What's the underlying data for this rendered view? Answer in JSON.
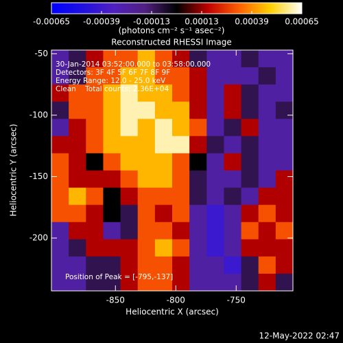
{
  "chart_data": {
    "type": "heatmap",
    "title": "Reconstructed RHESSI Image",
    "colorbar_label": "(photons cm⁻² s⁻¹ asec⁻²)",
    "zlim": [
      -0.00065,
      0.00065
    ],
    "zticks": [
      -0.00065,
      -0.00039,
      -0.00013,
      0.00013,
      0.00039,
      0.00065
    ],
    "colormap": [
      "#0000ff",
      "#2010e0",
      "#5020c0",
      "#502080",
      "#000000",
      "#c00000",
      "#ff6000",
      "#ffd000",
      "#ffffff"
    ],
    "x_label": "Heliocentric X (arcsec)",
    "y_label": "Heliocentric Y (arcsec)",
    "xlim": [
      -903,
      -703
    ],
    "ylim": [
      -243,
      -47
    ],
    "xticks": [
      -850,
      -800,
      -750
    ],
    "yticks": [
      -50,
      -100,
      -150,
      -200
    ],
    "z": [
      [
        -0.00025,
        -0.0001,
        0.00015,
        0.0003,
        0.0003,
        0.00045,
        0.0003,
        0.00015,
        -0.0001,
        -0.00025,
        -0.00025,
        -0.0001,
        -0.00025,
        -0.00025
      ],
      [
        -0.00025,
        -0.0001,
        0.0003,
        0.0003,
        0.00045,
        0.00045,
        0.0003,
        0.0003,
        0.00015,
        -0.00025,
        -0.00025,
        -0.00025,
        -0.0001,
        -0.00025
      ],
      [
        0.00015,
        0.0003,
        0.0003,
        0.00045,
        0.0006,
        0.00045,
        0.00045,
        0.0003,
        0.00015,
        -0.00025,
        0.00015,
        -0.0001,
        -0.00025,
        -0.00025
      ],
      [
        -0.0001,
        0.0003,
        0.0003,
        0.00045,
        0.0006,
        0.0006,
        0.00045,
        0.00045,
        0.00015,
        -0.00025,
        0.00015,
        -0.0001,
        -0.00025,
        -0.0001
      ],
      [
        -0.00025,
        0.00015,
        0.0003,
        0.00045,
        0.0006,
        0.00045,
        0.0006,
        0.00045,
        0.0003,
        -0.00025,
        -0.0001,
        0.00015,
        -0.00025,
        -0.00025
      ],
      [
        0.00015,
        0.00015,
        0.0003,
        0.00045,
        0.00045,
        0.00045,
        0.0006,
        0.0006,
        0.00015,
        -0.0001,
        -0.00025,
        -0.0001,
        -0.00025,
        -0.00025
      ],
      [
        0.0003,
        0.00015,
        0,
        0.0003,
        0.00045,
        0.00045,
        0.00045,
        0.0003,
        0,
        -0.00025,
        0.00015,
        -0.0001,
        -0.00025,
        -0.00025
      ],
      [
        0.0003,
        0.00015,
        0.00015,
        0.00015,
        0.0003,
        0.00045,
        0.00045,
        0.0003,
        -0.0001,
        -0.00025,
        -0.00025,
        -0.0001,
        -0.00025,
        0.00015
      ],
      [
        0.0003,
        0.00045,
        0.0003,
        0,
        0.00015,
        0.0003,
        0.0003,
        0.0003,
        -0.0001,
        -0.00025,
        -0.0001,
        -0.00025,
        0.00015,
        0.00015
      ],
      [
        0.0003,
        0.0003,
        0.00015,
        0,
        -0.0001,
        0.0003,
        0.00015,
        0.0003,
        -0.00025,
        -0.0004,
        -0.00025,
        0.00015,
        0.0003,
        0.00015
      ],
      [
        -0.00025,
        0.00015,
        0.00015,
        -0.00025,
        -0.0001,
        0.0003,
        0.0003,
        0.00015,
        -0.00025,
        -0.0004,
        -0.00025,
        0.0003,
        0.00015,
        0.0003
      ],
      [
        -0.00025,
        -0.0001,
        0.00015,
        0.00015,
        0.00015,
        0.0003,
        0.00045,
        0.0003,
        -0.00025,
        -0.0004,
        -0.00025,
        0.00015,
        0.00015,
        0.00015
      ],
      [
        -0.00025,
        -0.00025,
        -0.0001,
        -0.0001,
        0.00015,
        0.0003,
        0.0003,
        0.00015,
        -0.00025,
        -0.00025,
        -0.0004,
        -0.0001,
        0.0003,
        0.00015
      ],
      [
        -0.00025,
        -0.00025,
        -0.0001,
        -0.0001,
        0.00015,
        0.0003,
        0.0003,
        0.00015,
        -0.00025,
        -0.00025,
        -0.00025,
        -0.0001,
        0.00015,
        -0.0001
      ]
    ],
    "annotations": [
      "30-Jan-2014 03:52:00.000 to 03:58:00.000",
      "Detectors: 3F 4F 5F 6F 7F 8F 9F",
      "Energy Range: 12.0 - 25.0 keV",
      "Clean    Total counts: 2.36E+04"
    ],
    "peak_label": "Position of Peak = [-795,-137]",
    "footer": "12-May-2022 02:47"
  }
}
